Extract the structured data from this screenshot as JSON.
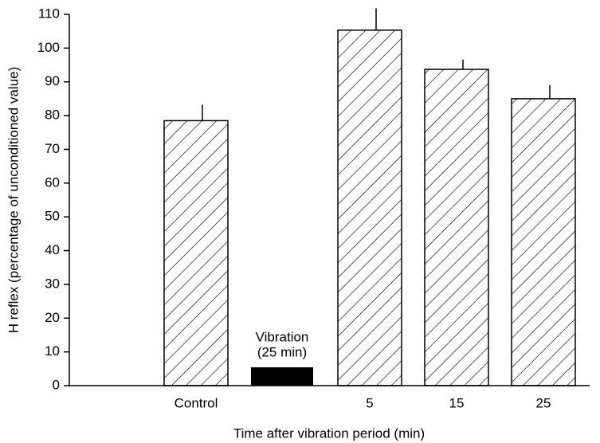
{
  "chart_data": {
    "type": "bar",
    "x_label": "Time after vibration period (min)",
    "y_label": "H reflex (percentage of unconditioned value)",
    "categories": [
      "Control",
      null,
      "5",
      "15",
      "25"
    ],
    "values": [
      78.5,
      null,
      105.3,
      93.7,
      85
    ],
    "errors": [
      4.7,
      null,
      6.5,
      2.9,
      4
    ],
    "color": "#000000",
    "annotation": [
      "Vibration",
      "(25 min)"
    ],
    "ylim": [
      0,
      110
    ],
    "yticks": [
      0,
      10,
      20,
      30,
      40,
      50,
      60,
      70,
      80,
      90,
      100,
      110
    ]
  }
}
